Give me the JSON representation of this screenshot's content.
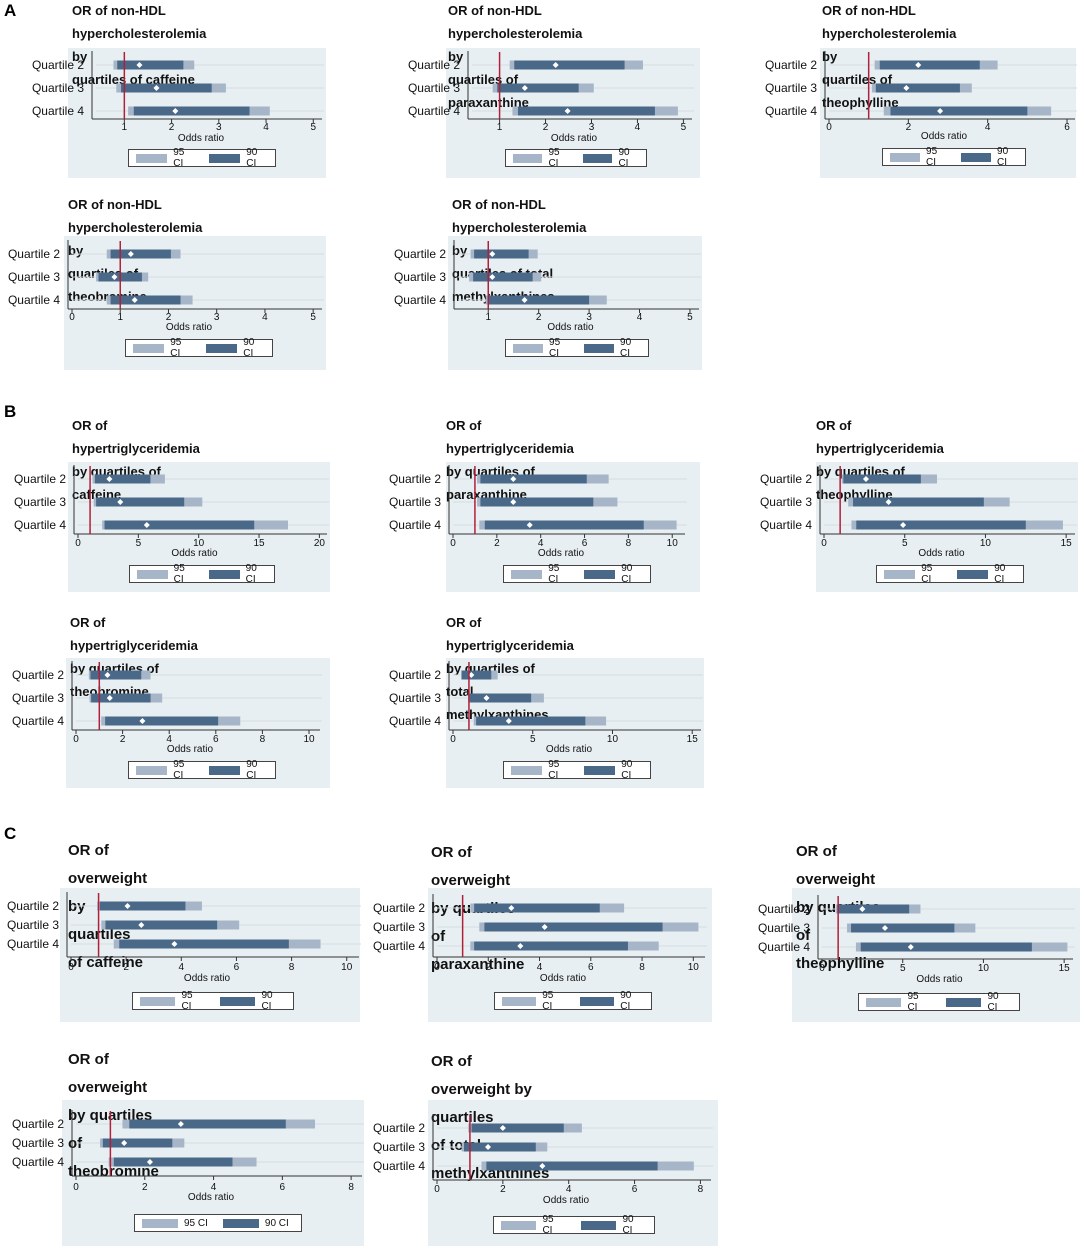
{
  "colors": {
    "ci95": "#a6b6c8",
    "ci90": "#4a6888",
    "refline": "#b0203a",
    "point": "#ffffff",
    "panel_bg": "#e8eff2"
  },
  "sections": [
    {
      "label": "A"
    },
    {
      "label": "B"
    },
    {
      "label": "C"
    }
  ],
  "legend": {
    "ci95": "95 CI",
    "ci90": "90 CI"
  },
  "chart_data": [
    {
      "type": "forest",
      "title_line1": "OR of non-HDL hypercholesterolemia by",
      "title_line2": "quartiles of caffeine",
      "xlabel": "Odds ratio",
      "ticks": [
        "1",
        "2",
        "3",
        "4",
        "5"
      ],
      "xlim": [
        0.4,
        5.1
      ],
      "ref": 1,
      "rows": [
        {
          "label": "Quartile 2",
          "or": 1.32,
          "ci95": [
            0.77,
            2.48
          ],
          "ci90": [
            0.85,
            2.25
          ]
        },
        {
          "label": "Quartile 3",
          "or": 1.68,
          "ci95": [
            0.83,
            3.15
          ],
          "ci90": [
            0.93,
            2.85
          ]
        },
        {
          "label": "Quartile 4",
          "or": 2.08,
          "ci95": [
            1.08,
            4.08
          ],
          "ci90": [
            1.2,
            3.65
          ]
        }
      ]
    },
    {
      "type": "forest",
      "title_line1": "OR of non-HDL hypercholesterolemia by",
      "title_line2": "quartiles of paraxanthine",
      "xlabel": "Odds ratio",
      "ticks": [
        "1",
        "2",
        "3",
        "4",
        "5"
      ],
      "xlim": [
        0.4,
        5.1
      ],
      "ref": 1,
      "rows": [
        {
          "label": "Quartile 2",
          "or": 2.22,
          "ci95": [
            1.22,
            4.12
          ],
          "ci90": [
            1.32,
            3.72
          ]
        },
        {
          "label": "Quartile 3",
          "or": 1.55,
          "ci95": [
            0.85,
            3.05
          ],
          "ci90": [
            0.95,
            2.72
          ]
        },
        {
          "label": "Quartile 4",
          "or": 2.48,
          "ci95": [
            1.28,
            4.88
          ],
          "ci90": [
            1.4,
            4.38
          ]
        }
      ]
    },
    {
      "type": "forest",
      "title_line1": "OR of non-HDL hypercholesterolemia by",
      "title_line2": "quartiles of theophylline",
      "xlabel": "Odds ratio",
      "ticks": [
        "0",
        "2",
        "4",
        "6"
      ],
      "xlim": [
        0,
        6.1
      ],
      "ref": 1,
      "rows": [
        {
          "label": "Quartile 2",
          "or": 2.25,
          "ci95": [
            1.15,
            4.25
          ],
          "ci90": [
            1.28,
            3.8
          ]
        },
        {
          "label": "Quartile 3",
          "or": 1.95,
          "ci95": [
            1.08,
            3.6
          ],
          "ci90": [
            1.18,
            3.3
          ]
        },
        {
          "label": "Quartile 4",
          "or": 2.8,
          "ci95": [
            1.38,
            5.6
          ],
          "ci90": [
            1.55,
            5.0
          ]
        }
      ]
    },
    {
      "type": "forest",
      "title_line1": "OR of non-HDL hypercholesterolemia by",
      "title_line2": "quartiles of theobromine",
      "xlabel": "Odds ratio",
      "ticks": [
        "0",
        "1",
        "2",
        "3",
        "4",
        "5"
      ],
      "xlim": [
        0,
        5.1
      ],
      "ref": 1,
      "rows": [
        {
          "label": "Quartile 2",
          "or": 1.22,
          "ci95": [
            0.72,
            2.25
          ],
          "ci90": [
            0.8,
            2.05
          ]
        },
        {
          "label": "Quartile 3",
          "or": 0.88,
          "ci95": [
            0.5,
            1.58
          ],
          "ci90": [
            0.55,
            1.45
          ]
        },
        {
          "label": "Quartile 4",
          "or": 1.3,
          "ci95": [
            0.72,
            2.5
          ],
          "ci90": [
            0.8,
            2.25
          ]
        }
      ]
    },
    {
      "type": "forest",
      "title_line1": "OR of non-HDL hypercholesterolemia by",
      "title_line2": "quartiles of total methylxanthines",
      "xlabel": "Odds ratio",
      "ticks": [
        "1",
        "2",
        "3",
        "4",
        "5"
      ],
      "xlim": [
        0.4,
        5.1
      ],
      "ref": 1,
      "rows": [
        {
          "label": "Quartile 2",
          "or": 1.08,
          "ci95": [
            0.65,
            1.98
          ],
          "ci90": [
            0.72,
            1.8
          ]
        },
        {
          "label": "Quartile 3",
          "or": 1.08,
          "ci95": [
            0.62,
            2.05
          ],
          "ci90": [
            0.7,
            1.88
          ]
        },
        {
          "label": "Quartile 4",
          "or": 1.72,
          "ci95": [
            0.95,
            3.35
          ],
          "ci90": [
            1.0,
            3.0
          ]
        }
      ]
    },
    {
      "type": "forest",
      "title_line1": "OR of hypertriglyceridemia by quartiles of",
      "title_line2": "caffeine",
      "xlabel": "Odds ratio",
      "ticks": [
        "0",
        "5",
        "10",
        "15",
        "20"
      ],
      "xlim": [
        0,
        20.3
      ],
      "ref": 1,
      "rows": [
        {
          "label": "Quartile 2",
          "or": 2.6,
          "ci95": [
            1.2,
            7.2
          ],
          "ci90": [
            1.4,
            6.0
          ]
        },
        {
          "label": "Quartile 3",
          "or": 3.5,
          "ci95": [
            1.3,
            10.3
          ],
          "ci90": [
            1.5,
            8.8
          ]
        },
        {
          "label": "Quartile 4",
          "or": 5.7,
          "ci95": [
            2.0,
            17.4
          ],
          "ci90": [
            2.2,
            14.6
          ]
        }
      ]
    },
    {
      "type": "forest",
      "title_line1": "OR of hypertriglyceridemia by quartiles of",
      "title_line2": "paraxanthine",
      "xlabel": "Odds ratio",
      "ticks": [
        "0",
        "2",
        "4",
        "6",
        "8",
        "10"
      ],
      "xlim": [
        0,
        10.4
      ],
      "ref": 1,
      "rows": [
        {
          "label": "Quartile 2",
          "or": 2.75,
          "ci95": [
            1.1,
            7.1
          ],
          "ci90": [
            1.25,
            6.1
          ]
        },
        {
          "label": "Quartile 3",
          "or": 2.75,
          "ci95": [
            1.1,
            7.5
          ],
          "ci90": [
            1.25,
            6.4
          ]
        },
        {
          "label": "Quartile 4",
          "or": 3.5,
          "ci95": [
            1.2,
            10.2
          ],
          "ci90": [
            1.45,
            8.7
          ]
        }
      ]
    },
    {
      "type": "forest",
      "title_line1": "OR of hypertriglyceridemia by quartiles of",
      "title_line2": "theophylline",
      "xlabel": "Odds ratio",
      "ticks": [
        "0",
        "5",
        "10",
        "15"
      ],
      "xlim": [
        0,
        15.3
      ],
      "ref": 1,
      "rows": [
        {
          "label": "Quartile 2",
          "or": 2.6,
          "ci95": [
            1.1,
            7.0
          ],
          "ci90": [
            1.2,
            6.0
          ]
        },
        {
          "label": "Quartile 3",
          "or": 4.0,
          "ci95": [
            1.5,
            11.5
          ],
          "ci90": [
            1.8,
            9.9
          ]
        },
        {
          "label": "Quartile 4",
          "or": 4.9,
          "ci95": [
            1.7,
            14.8
          ],
          "ci90": [
            2.0,
            12.5
          ]
        }
      ]
    },
    {
      "type": "forest",
      "title_line1": "OR of hypertriglyceridemia by quartiles of",
      "title_line2": "theobromine",
      "xlabel": "Odds ratio",
      "ticks": [
        "0",
        "2",
        "4",
        "6",
        "8",
        "10"
      ],
      "xlim": [
        0,
        10.3
      ],
      "ref": 1,
      "rows": [
        {
          "label": "Quartile 2",
          "or": 1.35,
          "ci95": [
            0.55,
            3.2
          ],
          "ci90": [
            0.62,
            2.8
          ]
        },
        {
          "label": "Quartile 3",
          "or": 1.45,
          "ci95": [
            0.58,
            3.7
          ],
          "ci90": [
            0.65,
            3.2
          ]
        },
        {
          "label": "Quartile 4",
          "or": 2.85,
          "ci95": [
            1.08,
            7.05
          ],
          "ci90": [
            1.25,
            6.1
          ]
        }
      ]
    },
    {
      "type": "forest",
      "title_line1": "OR of hypertriglyceridemia by quartiles of",
      "title_line2": "total methylxanthines",
      "xlabel": "Odds ratio",
      "ticks": [
        "0",
        "5",
        "10",
        "15"
      ],
      "xlim": [
        0,
        15.3
      ],
      "ref": 1,
      "rows": [
        {
          "label": "Quartile 2",
          "or": 1.15,
          "ci95": [
            0.5,
            2.8
          ],
          "ci90": [
            0.55,
            2.4
          ]
        },
        {
          "label": "Quartile 3",
          "or": 2.1,
          "ci95": [
            0.95,
            5.7
          ],
          "ci90": [
            1.05,
            4.9
          ]
        },
        {
          "label": "Quartile 4",
          "or": 3.5,
          "ci95": [
            1.3,
            9.6
          ],
          "ci90": [
            1.45,
            8.3
          ]
        }
      ]
    },
    {
      "type": "forest",
      "title_line1": "OR of overweight by quartiles",
      "title_line2": "of caffeine",
      "xlabel": "Odds ratio",
      "ticks": [
        "0",
        "2",
        "4",
        "6",
        "8",
        "10"
      ],
      "xlim": [
        0,
        10.3
      ],
      "ref": 1,
      "rows": [
        {
          "label": "Quartile 2",
          "or": 2.05,
          "ci95": [
            0.95,
            4.75
          ],
          "ci90": [
            1.05,
            4.15
          ]
        },
        {
          "label": "Quartile 3",
          "or": 2.55,
          "ci95": [
            1.1,
            6.1
          ],
          "ci90": [
            1.25,
            5.3
          ]
        },
        {
          "label": "Quartile 4",
          "or": 3.75,
          "ci95": [
            1.55,
            9.05
          ],
          "ci90": [
            1.75,
            7.9
          ]
        }
      ]
    },
    {
      "type": "forest",
      "title_line1": "OR of overweight by quartiles",
      "title_line2": "of paraxanthine",
      "xlabel": "Odds ratio",
      "ticks": [
        "0",
        "2",
        "4",
        "6",
        "8",
        "10"
      ],
      "xlim": [
        0,
        10.3
      ],
      "ref": 1,
      "rows": [
        {
          "label": "Quartile 2",
          "or": 2.9,
          "ci95": [
            1.3,
            7.3
          ],
          "ci90": [
            1.45,
            6.35
          ]
        },
        {
          "label": "Quartile 3",
          "or": 4.2,
          "ci95": [
            1.65,
            10.2
          ],
          "ci90": [
            1.85,
            8.8
          ]
        },
        {
          "label": "Quartile 4",
          "or": 3.25,
          "ci95": [
            1.3,
            8.65
          ],
          "ci90": [
            1.45,
            7.45
          ]
        }
      ]
    },
    {
      "type": "forest",
      "title_line1": "OR of overweight by quartiles",
      "title_line2": "of theophylline",
      "xlabel": "Odds ratio",
      "ticks": [
        "0",
        "5",
        "10",
        "15"
      ],
      "xlim": [
        0,
        15.3
      ],
      "ref": 1,
      "rows": [
        {
          "label": "Quartile 2",
          "or": 2.5,
          "ci95": [
            0.85,
            6.1
          ],
          "ci90": [
            0.95,
            5.4
          ]
        },
        {
          "label": "Quartile 3",
          "or": 3.9,
          "ci95": [
            1.55,
            9.5
          ],
          "ci90": [
            1.8,
            8.2
          ]
        },
        {
          "label": "Quartile 4",
          "or": 5.5,
          "ci95": [
            2.1,
            15.2
          ],
          "ci90": [
            2.4,
            13.0
          ]
        }
      ]
    },
    {
      "type": "forest",
      "title_line1": "OR of overweight by quartiles",
      "title_line2": "of theobromine",
      "xlabel": "Odds ratio",
      "ticks": [
        "0",
        "2",
        "4",
        "6",
        "8"
      ],
      "xlim": [
        0,
        8.2
      ],
      "ref": 1,
      "rows": [
        {
          "label": "Quartile 2",
          "or": 3.05,
          "ci95": [
            1.35,
            6.95
          ],
          "ci90": [
            1.55,
            6.1
          ]
        },
        {
          "label": "Quartile 3",
          "or": 1.4,
          "ci95": [
            0.7,
            3.15
          ],
          "ci90": [
            0.78,
            2.8
          ]
        },
        {
          "label": "Quartile 4",
          "or": 2.15,
          "ci95": [
            0.95,
            5.25
          ],
          "ci90": [
            1.1,
            4.55
          ]
        }
      ]
    },
    {
      "type": "forest",
      "title_line1": "OR of overweight by quartiles",
      "title_line2": "of total methylxanthines",
      "xlabel": "Odds ratio",
      "ticks": [
        "0",
        "2",
        "4",
        "6",
        "8"
      ],
      "xlim": [
        0,
        8.2
      ],
      "ref": 1,
      "rows": [
        {
          "label": "Quartile 2",
          "or": 2.0,
          "ci95": [
            0.95,
            4.4
          ],
          "ci90": [
            1.05,
            3.85
          ]
        },
        {
          "label": "Quartile 3",
          "or": 1.55,
          "ci95": [
            0.75,
            3.35
          ],
          "ci90": [
            0.82,
            3.0
          ]
        },
        {
          "label": "Quartile 4",
          "or": 3.2,
          "ci95": [
            1.35,
            7.8
          ],
          "ci90": [
            1.5,
            6.7
          ]
        }
      ]
    }
  ]
}
